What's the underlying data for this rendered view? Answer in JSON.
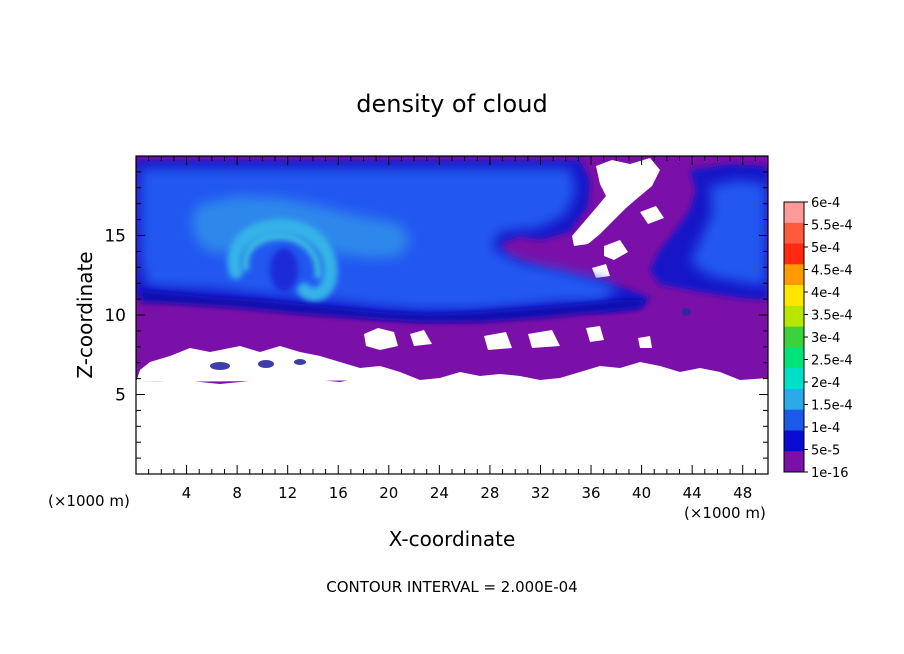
{
  "chart_data": {
    "type": "heatmap",
    "title": "density of cloud",
    "xlabel": "X-coordinate",
    "ylabel": "Z-coordinate",
    "x_unit_label_left": "(×1000 m)",
    "x_unit_label_right": "(×1000 m)",
    "footer": "CONTOUR INTERVAL = 2.000E-04",
    "xlim": [
      0,
      50
    ],
    "ylim": [
      0,
      20
    ],
    "x_ticks": [
      "4",
      "8",
      "12",
      "16",
      "20",
      "24",
      "28",
      "32",
      "36",
      "40",
      "44",
      "48"
    ],
    "x_tick_values": [
      4,
      8,
      12,
      16,
      20,
      24,
      28,
      32,
      36,
      40,
      44,
      48
    ],
    "y_ticks": [
      "5",
      "10",
      "15"
    ],
    "y_tick_values": [
      5,
      10,
      15
    ],
    "colorbar": {
      "labels": [
        "6e-4",
        "5.5e-4",
        "5e-4",
        "4.5e-4",
        "4e-4",
        "3.5e-4",
        "3e-4",
        "2.5e-4",
        "2e-4",
        "1.5e-4",
        "1e-4",
        "5e-5",
        "1e-16"
      ],
      "colors": [
        "#ff9a9a",
        "#ff5a3c",
        "#ff2a10",
        "#ff9a00",
        "#ffe400",
        "#b8e600",
        "#3cd23c",
        "#00e27a",
        "#00e0c8",
        "#2aaae6",
        "#1a5ae6",
        "#0a0ad2",
        "#7a10a8"
      ]
    },
    "regions": [
      {
        "level": "1e-16",
        "description_color": "#7a10a8"
      },
      {
        "level": "5e-5",
        "description_color": "#1212c8"
      },
      {
        "level": "1e-4",
        "description_color": "#2050f0"
      },
      {
        "level": "1.5e-4",
        "description_color": "#2aa6e6"
      }
    ],
    "grid": false,
    "legend_position": "right"
  }
}
